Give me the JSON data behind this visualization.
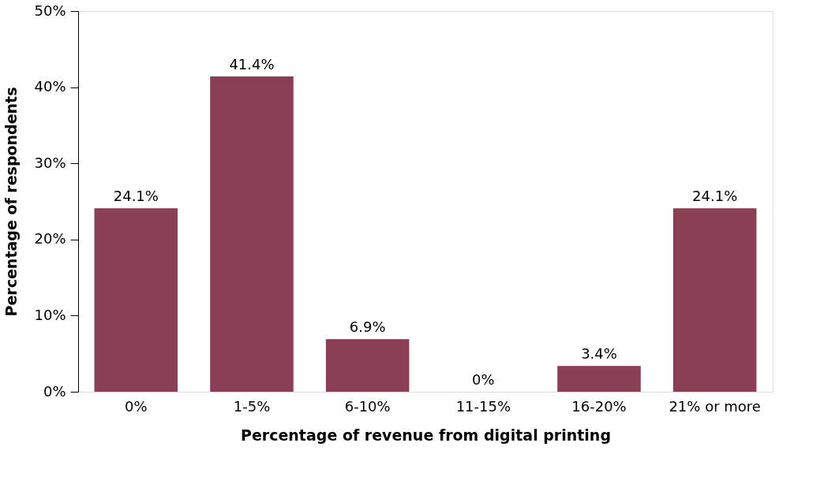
{
  "chart_data": {
    "type": "bar",
    "xlabel": "Percentage of revenue from digital printing",
    "ylabel": "Percentage of respondents",
    "categories": [
      "0%",
      "1-5%",
      "6-10%",
      "11-15%",
      "16-20%",
      "21% or more"
    ],
    "values": [
      24.1,
      41.4,
      6.9,
      0,
      3.4,
      24.1
    ],
    "value_labels": [
      "24.1%",
      "41.4%",
      "6.9%",
      "0%",
      "3.4%",
      "24.1%"
    ],
    "color": "#8b3f56",
    "ylim": [
      0,
      50
    ],
    "yticks": [
      {
        "value": 0,
        "label": "0%"
      },
      {
        "value": 10,
        "label": "10%"
      },
      {
        "value": 20,
        "label": "20%"
      },
      {
        "value": 30,
        "label": "30%"
      },
      {
        "value": 40,
        "label": "40%"
      },
      {
        "value": 50,
        "label": "50%"
      }
    ],
    "grid": false
  }
}
